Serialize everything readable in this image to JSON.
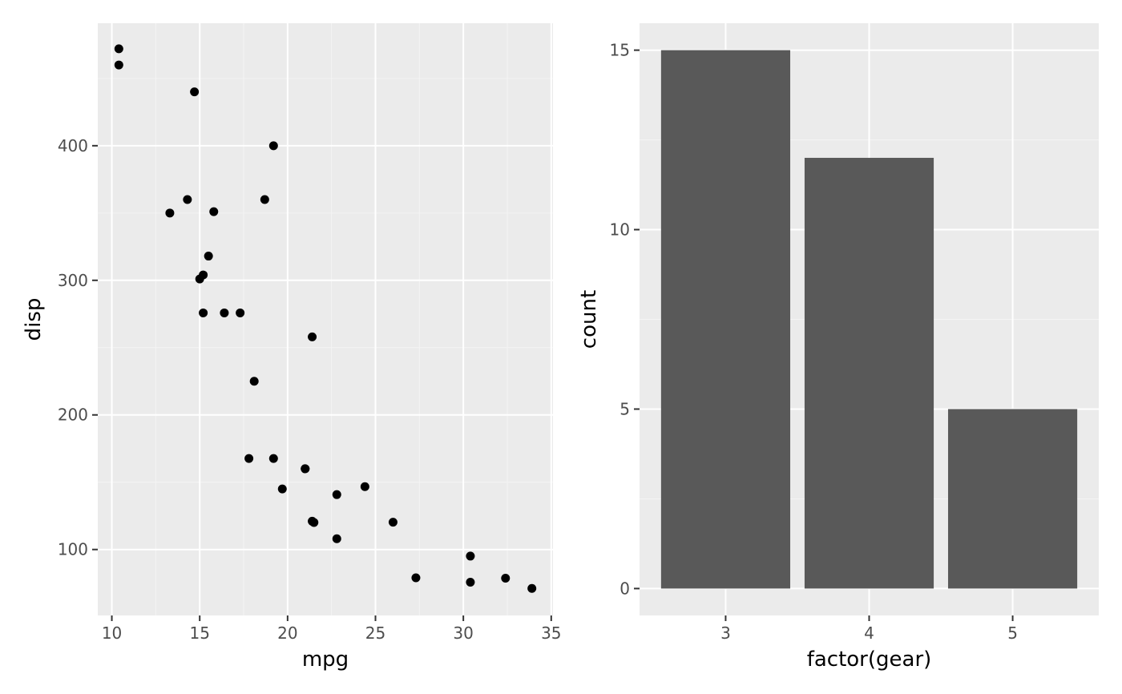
{
  "colors": {
    "panel_background": "#EBEBEB",
    "grid_major": "#FFFFFF",
    "grid_minor": "#F4F4F4",
    "point": "#000000",
    "bar": "#595959",
    "tick_mark": "#333333",
    "tick_label": "#4D4D4D"
  },
  "chart_data": [
    {
      "type": "scatter",
      "xlabel": "mpg",
      "ylabel": "disp",
      "xlim": [
        9.2,
        35.1
      ],
      "ylim": [
        51,
        491
      ],
      "x_ticks": [
        10,
        15,
        20,
        25,
        30,
        35
      ],
      "y_ticks": [
        100,
        200,
        300,
        400
      ],
      "grid": true,
      "points": [
        {
          "x": 21.0,
          "y": 160
        },
        {
          "x": 21.0,
          "y": 160
        },
        {
          "x": 22.8,
          "y": 108
        },
        {
          "x": 21.4,
          "y": 258
        },
        {
          "x": 18.7,
          "y": 360
        },
        {
          "x": 18.1,
          "y": 225
        },
        {
          "x": 14.3,
          "y": 360
        },
        {
          "x": 24.4,
          "y": 146.7
        },
        {
          "x": 22.8,
          "y": 140.8
        },
        {
          "x": 19.2,
          "y": 167.6
        },
        {
          "x": 17.8,
          "y": 167.6
        },
        {
          "x": 16.4,
          "y": 275.8
        },
        {
          "x": 17.3,
          "y": 275.8
        },
        {
          "x": 15.2,
          "y": 275.8
        },
        {
          "x": 10.4,
          "y": 472
        },
        {
          "x": 10.4,
          "y": 460
        },
        {
          "x": 14.7,
          "y": 440
        },
        {
          "x": 32.4,
          "y": 78.7
        },
        {
          "x": 30.4,
          "y": 75.7
        },
        {
          "x": 33.9,
          "y": 71.1
        },
        {
          "x": 21.5,
          "y": 120.1
        },
        {
          "x": 15.5,
          "y": 318
        },
        {
          "x": 15.2,
          "y": 304
        },
        {
          "x": 13.3,
          "y": 350
        },
        {
          "x": 19.2,
          "y": 400
        },
        {
          "x": 27.3,
          "y": 79
        },
        {
          "x": 26.0,
          "y": 120.3
        },
        {
          "x": 30.4,
          "y": 95.1
        },
        {
          "x": 15.8,
          "y": 351
        },
        {
          "x": 19.7,
          "y": 145
        },
        {
          "x": 15.0,
          "y": 301
        },
        {
          "x": 21.4,
          "y": 121
        }
      ]
    },
    {
      "type": "bar",
      "xlabel": "factor(gear)",
      "ylabel": "count",
      "categories": [
        "3",
        "4",
        "5"
      ],
      "values": [
        15,
        12,
        5
      ],
      "ylim": [
        -0.75,
        15.75
      ],
      "y_ticks": [
        0,
        5,
        10,
        15
      ],
      "grid": true
    }
  ]
}
